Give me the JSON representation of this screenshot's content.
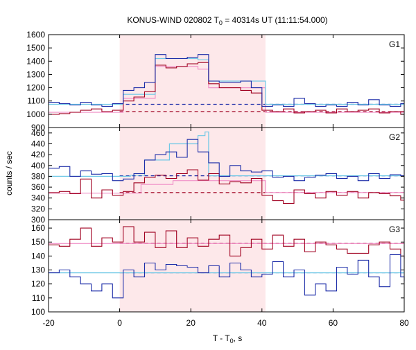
{
  "chart_data": {
    "type": "line",
    "title_prefix": "KONUS-WIND 020802 T",
    "title_sub": "0",
    "title_suffix": " = 40314s UT (11:11:54.000)",
    "xlabel_prefix": "T - T",
    "xlabel_sub": "0",
    "xlabel_suffix": ", s",
    "ylabel": "counts / sec",
    "xlim": [
      -20,
      80
    ],
    "xticks": [
      -20,
      0,
      20,
      40,
      60,
      80
    ],
    "x_tick_labels": [
      "-20",
      "0",
      "20",
      "40",
      "60",
      "80"
    ],
    "grid": false,
    "highlight_interval": [
      0,
      41
    ],
    "colors": {
      "red": "#a00020",
      "blue": "#1c2ca8",
      "cyan": "#6fc8e6",
      "pink": "#f090c8",
      "highlight": "#fde8ea"
    },
    "panels": [
      {
        "label": "G1",
        "ylim": [
          900,
          1600
        ],
        "yticks": [
          900,
          1000,
          1100,
          1200,
          1300,
          1400,
          1500,
          1600
        ],
        "ytick_labels": [
          "900",
          "1000",
          "1100",
          "1200",
          "1300",
          "1400",
          "1500",
          "1600"
        ],
        "red_bg": 1020,
        "blue_bg": 1075,
        "series": [
          {
            "color": "red",
            "type": "step",
            "x": [
              -20,
              -17,
              -14,
              -11,
              -8,
              -5,
              -2,
              1,
              4,
              7,
              10,
              13,
              16,
              19,
              22,
              25,
              28,
              31,
              34,
              37,
              40,
              43,
              46,
              49,
              52,
              55,
              58,
              61,
              64,
              67,
              70,
              73,
              76,
              79,
              80
            ],
            "y": [
              1000,
              1005,
              1015,
              1030,
              1040,
              1020,
              1030,
              1100,
              1130,
              1170,
              1370,
              1350,
              1360,
              1380,
              1390,
              1230,
              1200,
              1200,
              1180,
              1160,
              1030,
              1020,
              1040,
              1010,
              1020,
              1030,
              1010,
              1040,
              1020,
              1030,
              1040,
              1010,
              1020,
              1000
            ]
          },
          {
            "color": "blue",
            "type": "step",
            "x": [
              -20,
              -17,
              -14,
              -11,
              -8,
              -5,
              -2,
              1,
              4,
              7,
              10,
              13,
              16,
              19,
              22,
              25,
              28,
              31,
              34,
              37,
              40,
              43,
              46,
              49,
              52,
              55,
              58,
              61,
              64,
              67,
              70,
              73,
              76,
              79,
              80
            ],
            "y": [
              1090,
              1080,
              1070,
              1090,
              1070,
              1060,
              1080,
              1180,
              1200,
              1240,
              1450,
              1420,
              1420,
              1430,
              1450,
              1250,
              1240,
              1240,
              1250,
              1200,
              1060,
              1070,
              1060,
              1120,
              1080,
              1060,
              1070,
              1060,
              1090,
              1070,
              1110,
              1070,
              1060,
              1080
            ]
          },
          {
            "color": "cyan",
            "type": "step",
            "x": [
              -20,
              0,
              1,
              10,
              22,
              25,
              40,
              41,
              80
            ],
            "y": [
              1075,
              1075,
              1150,
              1420,
              1410,
              1250,
              1250,
              1075
            ]
          },
          {
            "color": "pink",
            "type": "step",
            "x": [
              -20,
              0,
              1,
              10,
              22,
              25,
              40,
              41,
              80
            ],
            "y": [
              1015,
              1015,
              1120,
              1360,
              1340,
              1200,
              1200,
              1015
            ]
          }
        ]
      },
      {
        "label": "G2",
        "ylim": [
          300,
          470
        ],
        "yticks": [
          300,
          320,
          340,
          360,
          380,
          400,
          420,
          440,
          460
        ],
        "ytick_labels": [
          "300",
          "320",
          "340",
          "360",
          "380",
          "400",
          "420",
          "440",
          "460"
        ],
        "red_bg": 350,
        "blue_bg": 381,
        "series": [
          {
            "color": "red",
            "type": "step",
            "x": [
              -20,
              -17,
              -14,
              -11,
              -8,
              -5,
              -2,
              1,
              4,
              7,
              10,
              13,
              16,
              19,
              22,
              25,
              28,
              31,
              34,
              37,
              40,
              43,
              46,
              49,
              52,
              55,
              58,
              61,
              64,
              67,
              70,
              73,
              76,
              79,
              80
            ],
            "y": [
              350,
              352,
              348,
              375,
              340,
              355,
              345,
              352,
              368,
              378,
              382,
              376,
              385,
              392,
              373,
              385,
              366,
              370,
              368,
              376,
              345,
              335,
              330,
              355,
              348,
              340,
              352,
              345,
              352,
              340,
              350,
              348,
              344,
              336
            ]
          },
          {
            "color": "blue",
            "type": "step",
            "x": [
              -20,
              -17,
              -14,
              -11,
              -8,
              -5,
              -2,
              1,
              4,
              7,
              10,
              13,
              16,
              19,
              22,
              25,
              28,
              31,
              34,
              37,
              40,
              43,
              46,
              49,
              52,
              55,
              58,
              61,
              64,
              67,
              70,
              73,
              76,
              79,
              80
            ],
            "y": [
              395,
              398,
              380,
              390,
              384,
              385,
              372,
              375,
              385,
              410,
              420,
              425,
              415,
              448,
              425,
              405,
              380,
              400,
              390,
              388,
              390,
              378,
              380,
              372,
              378,
              382,
              385,
              376,
              380,
              372,
              385,
              376,
              383,
              381
            ]
          },
          {
            "color": "cyan",
            "type": "step",
            "x": [
              -20,
              0,
              3,
              7,
              14,
              22,
              24,
              25,
              80
            ],
            "y": [
              380,
              380,
              382,
              410,
              440,
              455,
              462,
              381
            ]
          },
          {
            "color": "pink",
            "type": "step",
            "x": [
              -20,
              0,
              6,
              15,
              41,
              80
            ],
            "y": [
              349,
              349,
              365,
              372,
              350
            ]
          }
        ]
      },
      {
        "label": "G3",
        "ylim": [
          100,
          166
        ],
        "yticks": [
          100,
          110,
          120,
          130,
          140,
          150,
          160
        ],
        "ytick_labels": [
          "100",
          "110",
          "120",
          "130",
          "140",
          "150",
          "160"
        ],
        "red_bg": 149,
        "blue_bg": 128,
        "series": [
          {
            "color": "red",
            "type": "step",
            "x": [
              -20,
              -17,
              -14,
              -11,
              -8,
              -5,
              -2,
              1,
              4,
              7,
              10,
              13,
              16,
              19,
              22,
              25,
              28,
              31,
              34,
              37,
              40,
              43,
              46,
              49,
              52,
              55,
              58,
              61,
              64,
              67,
              70,
              73,
              76,
              79,
              80
            ],
            "y": [
              148,
              147,
              152,
              160,
              147,
              153,
              150,
              161,
              150,
              157,
              146,
              158,
              146,
              153,
              147,
              152,
              155,
              140,
              146,
              152,
              145,
              155,
              147,
              152,
              143,
              150,
              148,
              145,
              142,
              142,
              148,
              150,
              145,
              140,
              138
            ]
          },
          {
            "color": "blue",
            "type": "step",
            "x": [
              -20,
              -17,
              -14,
              -11,
              -8,
              -5,
              -2,
              1,
              4,
              7,
              10,
              13,
              16,
              19,
              22,
              25,
              28,
              31,
              34,
              37,
              40,
              43,
              46,
              49,
              52,
              55,
              58,
              61,
              64,
              67,
              70,
              73,
              76,
              79,
              80
            ],
            "y": [
              128,
              130,
              125,
              120,
              115,
              120,
              110,
              130,
              125,
              135,
              130,
              134,
              133,
              132,
              128,
              133,
              125,
              135,
              130,
              125,
              127,
              136,
              125,
              130,
              112,
              120,
              115,
              132,
              127,
              137,
              125,
              118,
              141,
              125,
              122
            ]
          },
          {
            "color": "cyan",
            "type": "line",
            "x": [
              -20,
              80
            ],
            "y": [
              128,
              128
            ]
          },
          {
            "color": "pink",
            "type": "line",
            "x": [
              -20,
              80
            ],
            "y": [
              149,
              149
            ]
          }
        ]
      }
    ]
  }
}
